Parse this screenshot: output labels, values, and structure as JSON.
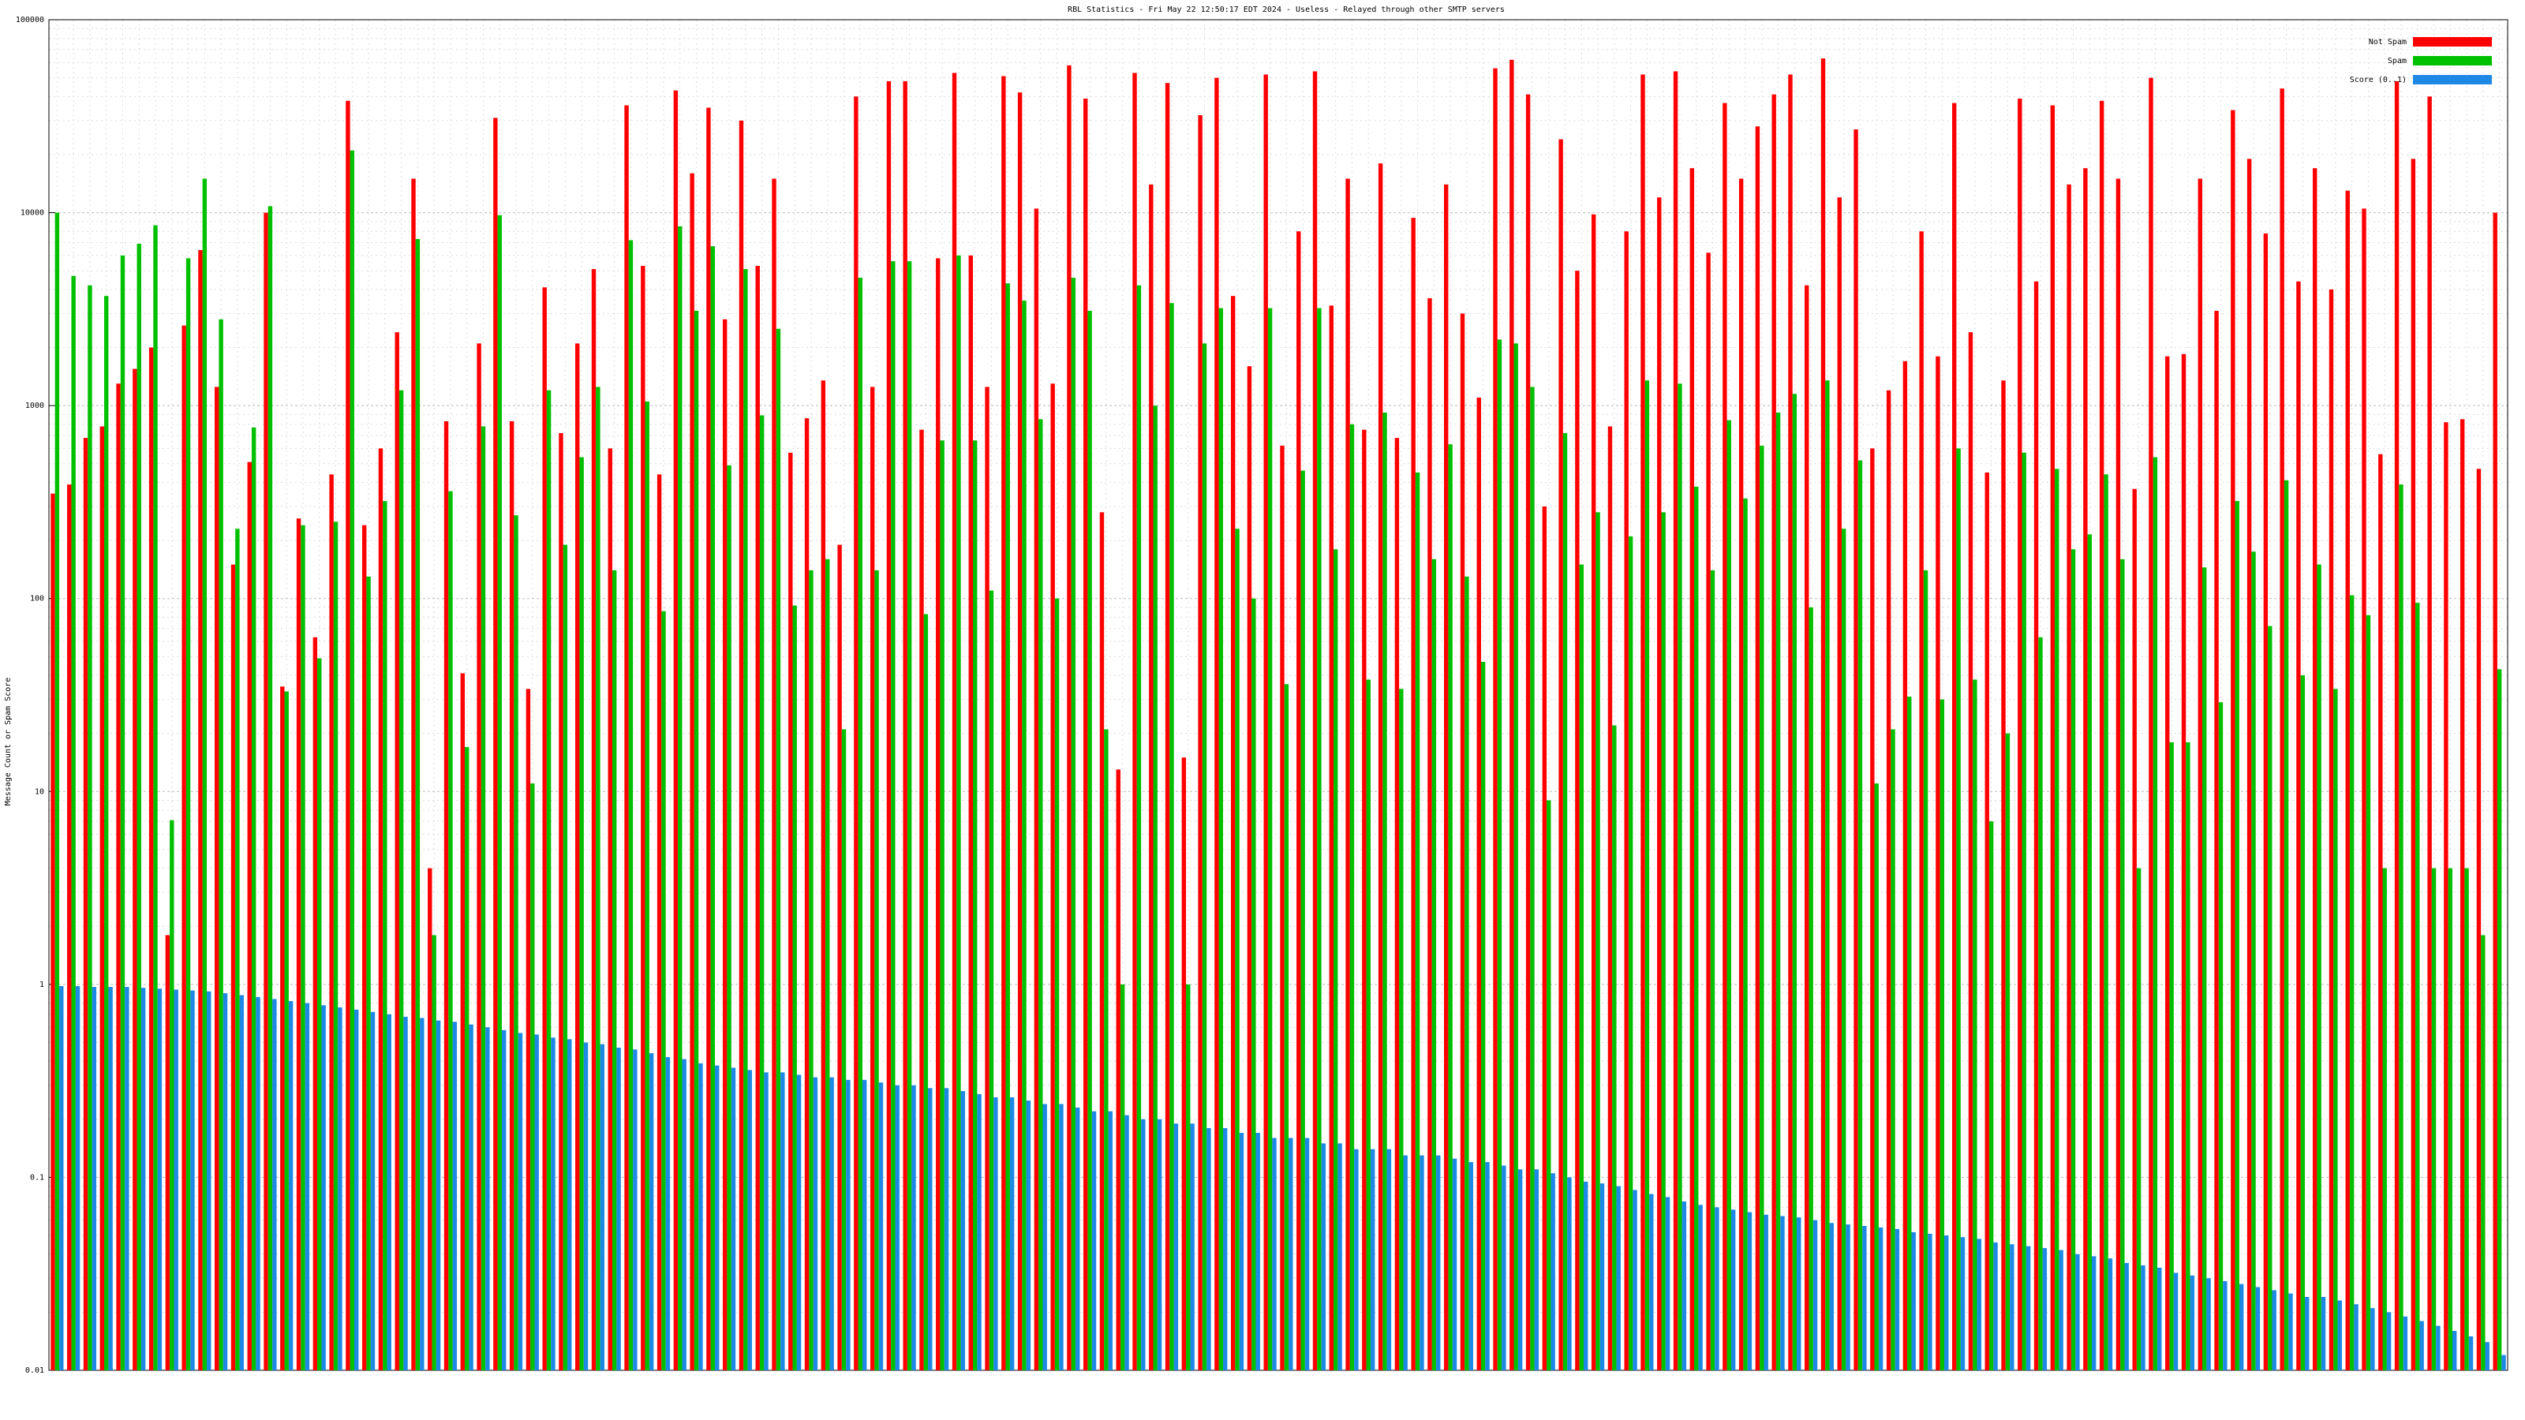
{
  "chart_data": {
    "type": "bar",
    "title": "RBL Statistics - Fri May 22 12:50:17 EDT 2024 - Useless - Relayed through other SMTP servers",
    "y_label": "Message Count or Spam Score",
    "log_scale": true,
    "grid": true,
    "legend": "top-right",
    "ylim": [
      0.01,
      100000
    ],
    "yticks": [
      0.01,
      0.1,
      1,
      10,
      100,
      1000,
      10000,
      100000
    ],
    "categories": [
      null,
      null,
      null,
      null,
      null,
      null,
      null,
      null,
      null,
      null,
      null,
      null,
      null,
      null,
      null,
      null,
      null,
      null,
      null,
      null,
      null,
      null,
      null,
      null,
      null,
      null,
      null,
      null,
      null,
      null,
      null,
      null,
      null,
      null,
      null,
      null,
      null,
      null,
      null,
      null,
      null,
      null,
      null,
      null,
      null,
      null,
      null,
      null,
      null,
      null,
      null,
      null,
      null,
      null,
      null,
      null,
      null,
      null,
      null,
      null,
      null,
      null,
      null,
      null,
      null,
      null,
      null,
      null,
      null,
      null,
      null,
      null,
      null,
      null,
      null,
      null,
      null,
      null,
      null,
      null,
      null,
      null,
      null,
      null,
      null,
      null,
      null,
      null,
      null,
      null,
      null,
      null,
      null,
      null,
      null,
      null,
      null,
      null,
      null,
      null,
      null,
      null,
      null,
      null,
      null,
      null,
      null,
      null,
      null,
      null,
      null,
      null,
      null,
      null,
      null,
      null,
      null,
      null,
      null,
      null,
      null,
      null,
      null,
      null,
      null,
      null,
      null,
      null,
      null,
      null,
      null,
      null,
      null,
      null,
      null,
      null,
      null,
      null,
      null,
      null,
      null,
      null,
      null,
      null,
      null,
      null,
      null,
      null,
      null,
      null
    ],
    "series": [
      {
        "name": "Not Spam",
        "color": "#ff0000",
        "values": [
          350,
          390,
          680,
          780,
          1300,
          1550,
          2000,
          1.8,
          2600,
          6400,
          1250,
          150,
          510,
          10000,
          35,
          260,
          63,
          440,
          38000,
          240,
          600,
          2400,
          15000,
          4,
          830,
          41,
          2100,
          31000,
          830,
          34,
          4100,
          720,
          2100,
          5100,
          600,
          36000,
          5300,
          440,
          43000,
          16000,
          35000,
          2800,
          30000,
          5300,
          15000,
          570,
          860,
          1350,
          190,
          40000,
          1250,
          48000,
          48000,
          750,
          5800,
          53000,
          6000,
          1250,
          51000,
          42000,
          10500,
          1300,
          58000,
          39000,
          280,
          13,
          53000,
          14000,
          47000,
          15,
          32000,
          50000,
          3700,
          1600,
          52000,
          620,
          8000,
          54000,
          3300,
          15000,
          750,
          18000,
          680,
          9400,
          3600,
          14000,
          3000,
          1100,
          56000,
          62000,
          41000,
          300,
          24000,
          5000,
          9800,
          780,
          8000,
          52000,
          12000,
          54000,
          17000,
          6200,
          37000,
          15000,
          28000,
          41000,
          52000,
          4200,
          63000,
          12000,
          27000,
          600,
          1200,
          1700,
          8000,
          1800,
          37000,
          2400,
          450,
          1350,
          39000,
          4400,
          36000,
          14000,
          17000,
          38000,
          15000,
          370,
          50000,
          1800,
          1850,
          15000,
          3100,
          34000,
          19000,
          7800,
          44000,
          4400,
          17000,
          4000,
          13000,
          10500,
          560,
          48000,
          19000,
          40000,
          820,
          850,
          470,
          10000
        ]
      },
      {
        "name": "Spam",
        "color": "#00c000",
        "values": [
          10000,
          4700,
          4200,
          3700,
          6000,
          6900,
          8600,
          7.1,
          5800,
          15000,
          2800,
          230,
          770,
          10800,
          33,
          240,
          49,
          250,
          21000,
          130,
          320,
          1200,
          7300,
          1.8,
          360,
          17,
          780,
          9700,
          270,
          11,
          1200,
          190,
          540,
          1250,
          140,
          7200,
          1050,
          86,
          8500,
          3100,
          6700,
          490,
          5100,
          890,
          2500,
          92,
          140,
          160,
          21,
          4600,
          140,
          5600,
          5600,
          83,
          660,
          6000,
          660,
          110,
          4300,
          3500,
          850,
          100,
          4600,
          3100,
          21,
          1,
          4200,
          1000,
          3400,
          1,
          2100,
          3200,
          230,
          100,
          3200,
          36,
          460,
          3200,
          180,
          800,
          38,
          920,
          34,
          450,
          160,
          630,
          130,
          47,
          2200,
          2100,
          1250,
          9,
          720,
          150,
          280,
          22,
          210,
          1350,
          280,
          1300,
          380,
          140,
          840,
          330,
          620,
          920,
          1150,
          90,
          1350,
          230,
          520,
          11,
          21,
          31,
          140,
          30,
          600,
          38,
          7,
          20,
          570,
          63,
          470,
          180,
          215,
          440,
          160,
          4,
          540,
          18,
          18,
          145,
          29,
          320,
          175,
          72,
          410,
          40,
          150,
          34,
          104,
          82,
          4,
          390,
          95,
          4,
          4,
          4,
          1.8,
          43
        ]
      },
      {
        "name": "Score (0..1)",
        "color": "#1e88e5",
        "values": [
          0.98,
          0.98,
          0.97,
          0.97,
          0.97,
          0.96,
          0.95,
          0.94,
          0.93,
          0.92,
          0.9,
          0.88,
          0.86,
          0.84,
          0.82,
          0.8,
          0.78,
          0.76,
          0.74,
          0.72,
          0.7,
          0.68,
          0.67,
          0.65,
          0.64,
          0.62,
          0.6,
          0.58,
          0.56,
          0.55,
          0.53,
          0.52,
          0.5,
          0.49,
          0.47,
          0.46,
          0.44,
          0.42,
          0.41,
          0.39,
          0.38,
          0.37,
          0.36,
          0.35,
          0.35,
          0.34,
          0.33,
          0.33,
          0.32,
          0.32,
          0.31,
          0.3,
          0.3,
          0.29,
          0.29,
          0.28,
          0.27,
          0.26,
          0.26,
          0.25,
          0.24,
          0.24,
          0.23,
          0.22,
          0.22,
          0.21,
          0.2,
          0.2,
          0.19,
          0.19,
          0.18,
          0.18,
          0.17,
          0.17,
          0.16,
          0.16,
          0.16,
          0.15,
          0.15,
          0.14,
          0.14,
          0.14,
          0.13,
          0.13,
          0.13,
          0.125,
          0.12,
          0.12,
          0.115,
          0.11,
          0.11,
          0.105,
          0.1,
          0.095,
          0.093,
          0.09,
          0.086,
          0.082,
          0.079,
          0.075,
          0.072,
          0.07,
          0.068,
          0.066,
          0.064,
          0.063,
          0.062,
          0.06,
          0.058,
          0.057,
          0.056,
          0.055,
          0.054,
          0.052,
          0.051,
          0.05,
          0.049,
          0.048,
          0.046,
          0.045,
          0.044,
          0.043,
          0.042,
          0.04,
          0.039,
          0.038,
          0.036,
          0.035,
          0.034,
          0.032,
          0.031,
          0.03,
          0.029,
          0.028,
          0.027,
          0.026,
          0.025,
          0.024,
          0.024,
          0.023,
          0.022,
          0.021,
          0.02,
          0.019,
          0.018,
          0.017,
          0.016,
          0.015,
          0.014,
          0.012
        ]
      }
    ]
  }
}
